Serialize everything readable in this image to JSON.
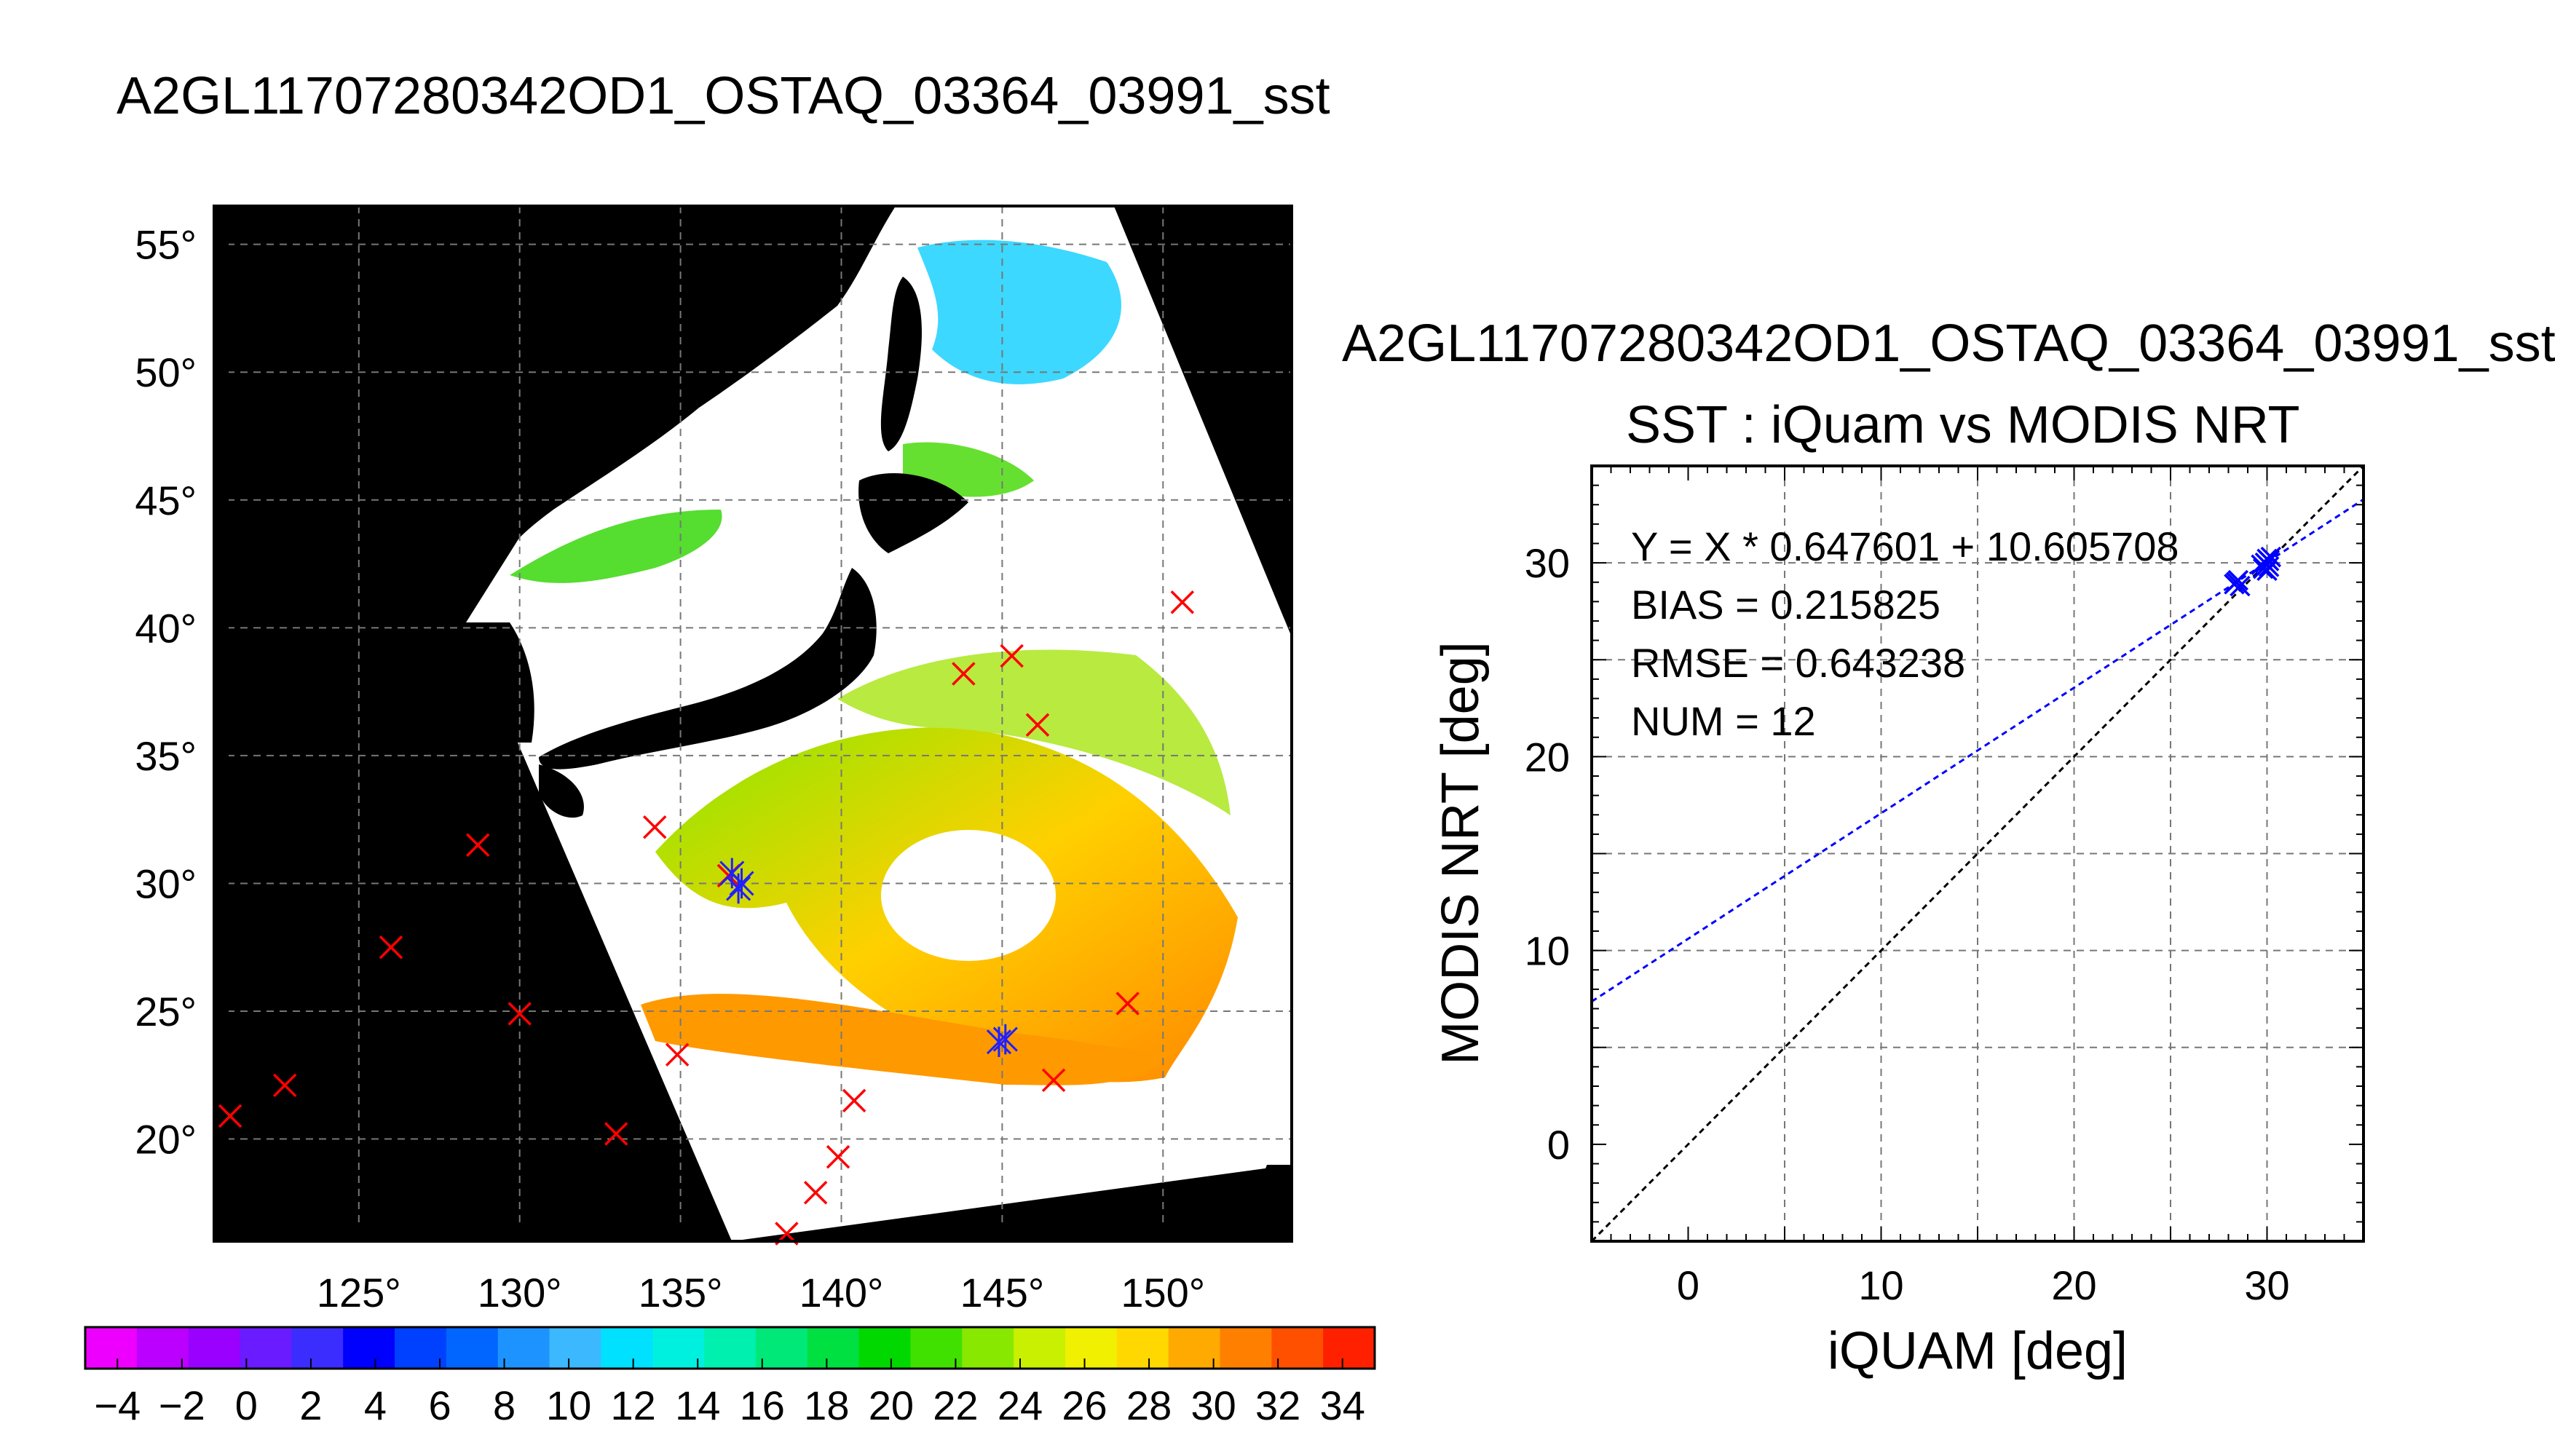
{
  "main_title": "A2GL11707280342OD1_OSTAQ_03364_03991_sst",
  "chart_data": [
    {
      "type": "map",
      "description_fields": "satellite SST swath with iQuam match-up locations",
      "lat_ticks": [
        "55°",
        "50°",
        "45°",
        "40°",
        "35°",
        "30°",
        "25°",
        "20°"
      ],
      "lat_values": [
        55,
        50,
        45,
        40,
        35,
        30,
        25,
        20
      ],
      "lon_ticks": [
        "125°",
        "130°",
        "135°",
        "140°",
        "145°",
        "150°"
      ],
      "lon_values": [
        125,
        130,
        135,
        140,
        145,
        150
      ],
      "lon_range": [
        120.5,
        154
      ],
      "lat_range": [
        16,
        56.5
      ],
      "grid": true,
      "colorbar": {
        "ticks": [
          "−4",
          "−2",
          "0",
          "2",
          "4",
          "6",
          "8",
          "10",
          "12",
          "14",
          "16",
          "18",
          "20",
          "22",
          "24",
          "26",
          "28",
          "30",
          "32",
          "34"
        ],
        "range": [
          -5,
          35
        ],
        "colors": [
          "#ee00ff",
          "#bb00ff",
          "#9900ff",
          "#6a1bff",
          "#3c2dff",
          "#0000ff",
          "#0040ff",
          "#0066ff",
          "#1d93ff",
          "#3cb8ff",
          "#00e0ff",
          "#00f0e0",
          "#00f0b0",
          "#00e878",
          "#00e040",
          "#00d800",
          "#40e000",
          "#88e800",
          "#c8f000",
          "#f0f000",
          "#ffd800",
          "#ffaa00",
          "#ff8000",
          "#ff5000",
          "#ff2000"
        ]
      },
      "red_x_markers": [
        {
          "lon": 121,
          "lat": 20.9
        },
        {
          "lon": 122.7,
          "lat": 22.1
        },
        {
          "lon": 126,
          "lat": 27.5
        },
        {
          "lon": 128.7,
          "lat": 31.5
        },
        {
          "lon": 130,
          "lat": 24.9
        },
        {
          "lon": 133,
          "lat": 20.2
        },
        {
          "lon": 134.2,
          "lat": 32.2
        },
        {
          "lon": 134.9,
          "lat": 23.3
        },
        {
          "lon": 136.5,
          "lat": 30.3
        },
        {
          "lon": 138.3,
          "lat": 16.3
        },
        {
          "lon": 139.2,
          "lat": 17.9
        },
        {
          "lon": 139.9,
          "lat": 19.3
        },
        {
          "lon": 140.4,
          "lat": 21.5
        },
        {
          "lon": 143.8,
          "lat": 38.2
        },
        {
          "lon": 145.3,
          "lat": 38.9
        },
        {
          "lon": 146.1,
          "lat": 36.2
        },
        {
          "lon": 146.6,
          "lat": 22.3
        },
        {
          "lon": 148.9,
          "lat": 25.3
        },
        {
          "lon": 150.6,
          "lat": 41
        }
      ],
      "blue_star_markers": [
        {
          "lon": 136.6,
          "lat": 30.4
        },
        {
          "lon": 136.9,
          "lat": 30
        },
        {
          "lon": 136.8,
          "lat": 29.8
        },
        {
          "lon": 144.9,
          "lat": 23.8
        },
        {
          "lon": 145.1,
          "lat": 23.9
        }
      ]
    },
    {
      "type": "scatter",
      "panel_title": "A2GL11707280342OD1_OSTAQ_03364_03991_sst",
      "title": "SST : iQuam vs MODIS NRT",
      "xlabel": "iQUAM [deg]",
      "ylabel": "MODIS NRT [deg]",
      "xlim": [
        -5,
        35
      ],
      "ylim": [
        -5,
        35
      ],
      "x_ticks": [
        "0",
        "10",
        "20",
        "30"
      ],
      "x_tick_values": [
        0,
        10,
        20,
        30
      ],
      "y_ticks": [
        "0",
        "10",
        "20",
        "30"
      ],
      "y_tick_values": [
        0,
        10,
        20,
        30
      ],
      "grid": true,
      "stats": {
        "fit": "Y = X * 0.647601 + 10.605708",
        "bias": "BIAS = 0.215825",
        "rmse": "RMSE = 0.643238",
        "num": "NUM = 12"
      },
      "fit_slope": 0.647601,
      "fit_intercept": 10.605708,
      "points": [
        {
          "x": 28.3,
          "y": 28.9
        },
        {
          "x": 28.5,
          "y": 29.1
        },
        {
          "x": 28.6,
          "y": 28.8
        },
        {
          "x": 29.8,
          "y": 29.7
        },
        {
          "x": 29.9,
          "y": 30.0
        },
        {
          "x": 30.0,
          "y": 30.2
        },
        {
          "x": 30.1,
          "y": 29.8
        },
        {
          "x": 30.2,
          "y": 30.3
        },
        {
          "x": 29.7,
          "y": 29.9
        },
        {
          "x": 30.0,
          "y": 29.6
        },
        {
          "x": 28.4,
          "y": 29.0
        },
        {
          "x": 30.1,
          "y": 30.1
        }
      ],
      "colors": {
        "fit_line": "#0000ff",
        "identity_line": "#000000",
        "points": "#0000ff"
      }
    }
  ]
}
